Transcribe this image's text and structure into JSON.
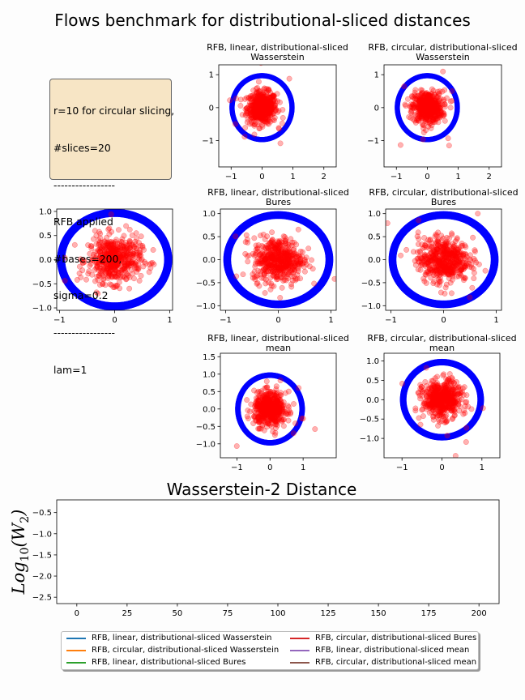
{
  "title": "Flows benchmark for distributional-sliced distances",
  "info_lines": [
    "r=10 for circular slicing,",
    "#slices=20",
    "-----------------",
    "RFB applied",
    "#bases=200,",
    "sigma=0.2",
    "-----------------",
    "lam=1"
  ],
  "colors": {
    "circle": "#0000ff",
    "points": "#ff0000",
    "legend": [
      "#1f77b4",
      "#ff7f0e",
      "#2ca02c",
      "#d62728",
      "#9467bd",
      "#8c564b"
    ]
  },
  "chart_data": [
    {
      "type": "scatter",
      "title": "RFB, linear, distributional-sliced\nWasserstein",
      "xlim": [
        -1.4,
        2.4
      ],
      "ylim": [
        -1.8,
        1.3
      ],
      "xticks": [
        -1,
        0,
        1,
        2
      ],
      "yticks": [
        -1,
        0,
        1
      ],
      "target": "unit circle",
      "samples": "gaussian cloud, mean (0,0), std 0.25"
    },
    {
      "type": "scatter",
      "title": "RFB, circular, distributional-sliced\nWasserstein",
      "xlim": [
        -1.4,
        2.4
      ],
      "ylim": [
        -1.8,
        1.3
      ],
      "xticks": [
        -1,
        0,
        1,
        2
      ],
      "yticks": [
        -1,
        0,
        1
      ],
      "target": "unit circle",
      "samples": "gaussian cloud, mean (0,0), std 0.25"
    },
    {
      "type": "scatter",
      "title": "",
      "xlim": [
        -1.05,
        1.05
      ],
      "ylim": [
        -1.05,
        1.05
      ],
      "xticks": [
        -1,
        0,
        1
      ],
      "yticks": [
        1.0,
        0.5,
        0.0,
        -0.5,
        -1.0
      ],
      "target": "unit circle",
      "samples": "gaussian cloud, mean (0,0), std 0.25"
    },
    {
      "type": "scatter",
      "title": "RFB, linear, distributional-sliced\nBures",
      "xlim": [
        -1.1,
        1.1
      ],
      "ylim": [
        -1.1,
        1.1
      ],
      "xticks": [
        -1,
        0,
        1
      ],
      "yticks": [
        1.0,
        0.5,
        0.0,
        -0.5,
        -1.0
      ],
      "target": "unit circle",
      "samples": "gaussian cloud, mean (0,0), std 0.25"
    },
    {
      "type": "scatter",
      "title": "RFB, circular, distributional-sliced\nBures",
      "xlim": [
        -1.1,
        1.1
      ],
      "ylim": [
        -1.1,
        1.1
      ],
      "xticks": [
        -1,
        0,
        1
      ],
      "yticks": [
        1.0,
        0.5,
        0.0,
        -0.5,
        -1.0
      ],
      "target": "unit circle",
      "samples": "gaussian cloud, mean (0,0), std 0.25"
    },
    {
      "type": "scatter",
      "title": "RFB, linear, distributional-sliced\nmean",
      "xlim": [
        -1.5,
        2.0
      ],
      "ylim": [
        -1.4,
        1.6
      ],
      "xticks": [
        -1,
        0,
        1
      ],
      "yticks": [
        1.5,
        1.0,
        0.5,
        0.0,
        -0.5,
        -1.0
      ],
      "target": "unit circle",
      "samples": "gaussian cloud, mean (0,0), std 0.25"
    },
    {
      "type": "scatter",
      "title": "RFB, circular, distributional-sliced\nmean",
      "xlim": [
        -1.45,
        1.45
      ],
      "ylim": [
        -1.5,
        1.2
      ],
      "xticks": [
        -1,
        0,
        1
      ],
      "yticks": [
        1.0,
        0.5,
        0.0,
        -0.5,
        -1.0
      ],
      "target": "unit circle",
      "samples": "gaussian cloud, mean (0,0), std 0.25"
    },
    {
      "type": "line",
      "title": "Wasserstein-2 Distance",
      "ylabel": "Log10(W2)",
      "xlim": [
        -10,
        210
      ],
      "ylim": [
        -2.65,
        -0.2
      ],
      "xticks": [
        0,
        25,
        50,
        75,
        100,
        125,
        150,
        175,
        200
      ],
      "yticks": [
        -0.5,
        -1.0,
        -1.5,
        -2.0,
        -2.5
      ],
      "series": [
        {
          "name": "RFB, linear, distributional-sliced Wasserstein",
          "values": []
        },
        {
          "name": "RFB, circular, distributional-sliced Wasserstein",
          "values": []
        },
        {
          "name": "RFB, linear, distributional-sliced Bures",
          "values": []
        },
        {
          "name": "RFB, circular, distributional-sliced Bures",
          "values": []
        },
        {
          "name": "RFB, linear, distributional-sliced mean",
          "values": []
        },
        {
          "name": "RFB, circular, distributional-sliced mean",
          "values": []
        }
      ]
    }
  ]
}
